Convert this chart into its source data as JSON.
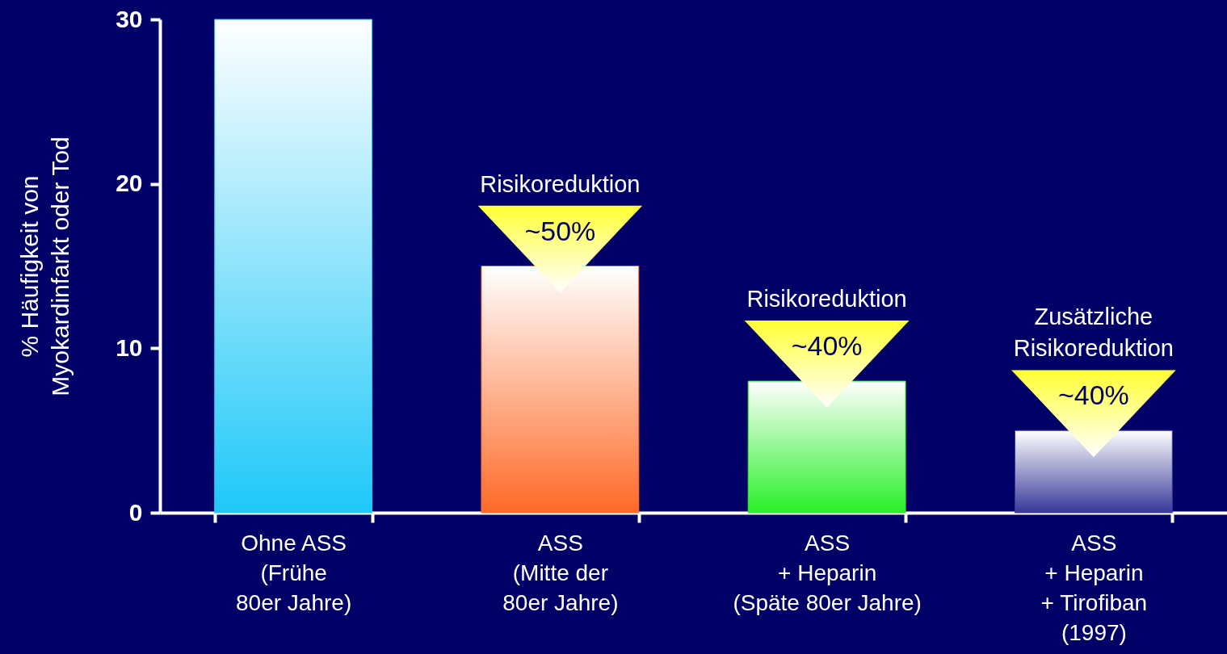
{
  "chart_data": {
    "type": "bar",
    "categories": [
      "Ohne ASS\n(Frühe\n80er Jahre)",
      "ASS\n(Mitte der\n80er Jahre)",
      "ASS\n+ Heparin\n(Späte 80er Jahre)",
      "ASS\n+ Heparin\n+ Tirofiban\n(1997)"
    ],
    "values": [
      30,
      15,
      8,
      5
    ],
    "colors": [
      "#1ec8f8",
      "#ff6a28",
      "#28f028",
      "#38389a"
    ],
    "ylabel": "% Häufigkeit von\nMyokardinfarkt oder Tod",
    "ylim": [
      0,
      30
    ],
    "yticks": [
      0,
      10,
      20,
      30
    ],
    "annotations": [
      {
        "text": "Risikoreduktion",
        "x": "ASS\n(Mitte der\n80er Jahre)",
        "y": 15
      },
      {
        "text": "~50%",
        "x": "ASS\n(Mitte der\n80er Jahre)",
        "y": 15
      },
      {
        "text": "Risikoreduktion",
        "x": "ASS\n+ Heparin\n(Späte 80er Jahre)",
        "y": 8
      },
      {
        "text": "~40%",
        "x": "ASS\n+ Heparin\n(Späte 80er Jahre)",
        "y": 8
      },
      {
        "text": "Zusätzliche\nRisikoreduktion",
        "x": "ASS\n+ Heparin\n+ Tirofiban\n(1997)",
        "y": 5
      },
      {
        "text": "~40%",
        "x": "ASS\n+ Heparin\n+ Tirofiban\n(1997)",
        "y": 5
      }
    ]
  }
}
